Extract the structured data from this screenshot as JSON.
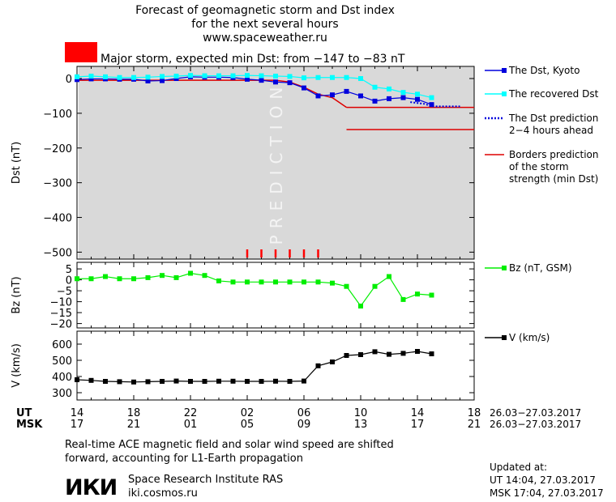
{
  "header": {
    "title_lines": [
      "Forecast of geomagnetic storm and Dst index",
      "for the next several hours",
      "www.spaceweather.ru"
    ],
    "storm_label": "Major storm, expected min Dst: from −147 to −83 nT",
    "storm_color": "#ff0000"
  },
  "colors": {
    "dst": "#0000dd",
    "recovered": "#00ffff",
    "prediction": "#0000dd",
    "borders": "#dd0000",
    "bz": "#00ee00",
    "v": "#000000",
    "prediction_band": "#d9d9d9",
    "prediction_text": "#f4f4f4",
    "ticks_red": "#ff0000"
  },
  "prediction_label": "PREDICTION",
  "legend": [
    {
      "id": "dst",
      "label": [
        "The Dst, Kyoto"
      ]
    },
    {
      "id": "recovered",
      "label": [
        "The recovered Dst"
      ]
    },
    {
      "id": "prediction",
      "label": [
        "The Dst prediction",
        "2−4 hours ahead"
      ]
    },
    {
      "id": "borders",
      "label": [
        "Borders prediction",
        "of the storm",
        "strength (min Dst)"
      ]
    },
    {
      "id": "bz",
      "label": [
        "Bz (nT, GSM)"
      ]
    },
    {
      "id": "v",
      "label": [
        "V (km/s)"
      ]
    }
  ],
  "time_axis": {
    "ut_label": "UT",
    "msk_label": "MSK",
    "ut_ticks": [
      "14",
      "18",
      "22",
      "02",
      "06",
      "10",
      "14",
      "18"
    ],
    "msk_ticks": [
      "17",
      "21",
      "01",
      "05",
      "09",
      "13",
      "17",
      "21"
    ],
    "ut_range": "26.03−27.03.2017",
    "msk_range": "26.03−27.03.2017"
  },
  "footer": {
    "note": [
      "Real-time ACE magnetic field and solar wind speed are shifted",
      "forward, accounting for L1-Earth propagation"
    ],
    "logo_text": "ИКИ",
    "institute": "Space Research Institute RAS",
    "site": "iki.cosmos.ru",
    "updated_label": "Updated at:",
    "updated_ut": "UT   14:04, 27.03.2017",
    "updated_msk": "MSK 17:04, 27.03.2017"
  },
  "chart_data": [
    {
      "type": "line",
      "ylabel": "Dst (nT)",
      "ylim": [
        -520,
        35
      ],
      "yticks": [
        0,
        -100,
        -200,
        -300,
        -400,
        -500
      ],
      "ytick_labels": [
        "0",
        "−100",
        "−200",
        "−300",
        "−400",
        "−500"
      ],
      "prediction_start_hour": 14.1,
      "series": [
        {
          "name": "The Dst, Kyoto",
          "id": "dst",
          "marker": "square",
          "x": [
            14,
            15,
            16,
            17,
            18,
            19,
            20,
            21,
            22,
            23,
            24,
            25,
            26,
            27,
            28,
            29,
            30,
            31,
            32,
            33,
            34,
            35,
            36,
            37,
            38,
            39
          ],
          "y": [
            -3,
            -1,
            -1,
            -2,
            -2,
            -7,
            -6,
            0,
            5,
            4,
            4,
            3,
            -2,
            -5,
            -10,
            -12,
            -27,
            -50,
            -47,
            -37,
            -50,
            -65,
            -58,
            -55,
            -60,
            -75
          ]
        },
        {
          "name": "The recovered Dst",
          "id": "recovered",
          "marker": "square",
          "x": [
            14,
            15,
            16,
            17,
            18,
            19,
            20,
            21,
            22,
            23,
            24,
            25,
            26,
            27,
            28,
            29,
            30,
            31,
            32,
            33,
            34,
            35,
            36,
            37,
            38,
            39
          ],
          "y": [
            5,
            7,
            5,
            3,
            3,
            4,
            6,
            7,
            9,
            8,
            8,
            8,
            9,
            8,
            7,
            6,
            2,
            3,
            3,
            3,
            0,
            -25,
            -30,
            -40,
            -45,
            -55
          ]
        },
        {
          "name": "The Dst prediction 2−4 hours ahead",
          "id": "prediction",
          "dashed": true,
          "x": [
            37.5,
            38.5,
            39,
            40,
            41
          ],
          "y": [
            -68,
            -73,
            -80,
            -80,
            -80
          ]
        }
      ],
      "borders": {
        "values": [
          -83,
          -147
        ],
        "x_start": [
          33,
          33
        ],
        "x_end": [
          42,
          42
        ]
      },
      "prebound_line": {
        "x": [
          14,
          28,
          29,
          30,
          31,
          32,
          33
        ],
        "y": [
          -5,
          -5,
          -10,
          -25,
          -45,
          -55,
          -83
        ]
      },
      "red_ticks_x": [
        26,
        27,
        28,
        29,
        30,
        31
      ]
    },
    {
      "type": "line",
      "ylabel": "Bz (nT)",
      "ylim": [
        -22,
        8
      ],
      "yticks": [
        5,
        0,
        -5,
        -10,
        -15,
        -20
      ],
      "ytick_labels": [
        "5",
        "0",
        "−5",
        "−10",
        "−15",
        "−20"
      ],
      "series": [
        {
          "name": "Bz (nT, GSM)",
          "id": "bz",
          "marker": "square",
          "x": [
            14,
            15,
            16,
            17,
            18,
            19,
            20,
            21,
            22,
            23,
            24,
            25,
            26,
            27,
            28,
            29,
            30,
            31,
            32,
            33,
            34,
            35,
            36,
            37,
            38,
            39
          ],
          "y": [
            0.5,
            0.5,
            1.5,
            0.5,
            0.5,
            1,
            2,
            1,
            3,
            2,
            -0.5,
            -1,
            -1,
            -1,
            -1,
            -1,
            -1,
            -1,
            -1.5,
            -3,
            -12,
            -3,
            1.5,
            -9,
            -6.5,
            -7
          ]
        }
      ]
    },
    {
      "type": "line",
      "ylabel": "V (km/s)",
      "ylim": [
        255,
        680
      ],
      "yticks": [
        300,
        400,
        500,
        600
      ],
      "ytick_labels": [
        "300",
        "400",
        "500",
        "600"
      ],
      "series": [
        {
          "name": "V (km/s)",
          "id": "v",
          "marker": "square",
          "x": [
            14,
            15,
            16,
            17,
            18,
            19,
            20,
            21,
            22,
            23,
            24,
            25,
            26,
            27,
            28,
            29,
            30,
            31,
            32,
            33,
            34,
            35,
            36,
            37,
            38,
            39
          ],
          "y": [
            380,
            376,
            370,
            368,
            366,
            368,
            370,
            372,
            370,
            370,
            371,
            371,
            370,
            370,
            371,
            370,
            372,
            466,
            490,
            530,
            535,
            553,
            537,
            543,
            555,
            540
          ]
        }
      ]
    }
  ]
}
